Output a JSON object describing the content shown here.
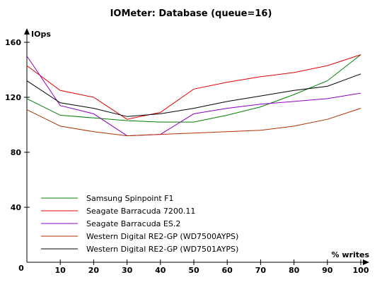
{
  "chart_data": {
    "type": "line",
    "title": "IOMeter: Database (queue=16)",
    "ylabel": "IOps",
    "xlabel": "% writes",
    "x": [
      0,
      10,
      20,
      30,
      40,
      50,
      60,
      70,
      80,
      90,
      100
    ],
    "xlim": [
      0,
      100
    ],
    "ylim": [
      0,
      160
    ],
    "yticks": [
      40,
      80,
      120,
      160
    ],
    "xticks": [
      10,
      20,
      30,
      40,
      50,
      60,
      70,
      80,
      90,
      100
    ],
    "origin_label": "0",
    "grid": false,
    "legend_position": "bottom-left",
    "series": [
      {
        "name": "Samsung Spinpoint F1",
        "color": "#008000",
        "values": [
          119,
          107,
          105,
          103,
          102,
          102,
          107,
          113,
          122,
          132,
          151
        ]
      },
      {
        "name": "Seagate Barracuda 7200.11",
        "color": "#e00000",
        "values": [
          143,
          125,
          120,
          104,
          109,
          126,
          131,
          135,
          138,
          143,
          151
        ]
      },
      {
        "name": "Seagate Barracuda ES.2",
        "color": "#9000c0",
        "values": [
          150,
          114,
          108,
          92,
          93,
          108,
          112,
          115,
          117,
          119,
          123
        ]
      },
      {
        "name": "Western Digital RE2-GP (WD7500AYPS)",
        "color": "#b03000",
        "values": [
          111,
          99,
          95,
          92,
          93,
          94,
          95,
          96,
          99,
          104,
          112
        ]
      },
      {
        "name": "Western Digital RE2-GP (WD7501AYPS)",
        "color": "#000000",
        "values": [
          132,
          116,
          112,
          106,
          108,
          112,
          117,
          121,
          125,
          128,
          137
        ]
      }
    ]
  }
}
